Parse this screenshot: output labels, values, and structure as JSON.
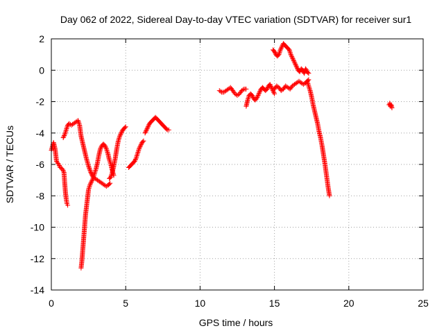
{
  "chart_data": {
    "type": "scatter",
    "title": "Day 062 of 2022, Sidereal Day-to-day VTEC variation (SDTVAR) for receiver sur1",
    "xlabel": "GPS time / hours",
    "ylabel": "SDTVAR / TECUs",
    "xlim": [
      0,
      25
    ],
    "ylim": [
      -14,
      2
    ],
    "x_ticks": [
      "0",
      "5",
      "10",
      "15",
      "20",
      "25"
    ],
    "y_ticks": [
      "2",
      "0",
      "-2",
      "-4",
      "-6",
      "-8",
      "-10",
      "-12",
      "-14"
    ],
    "grid": true,
    "legend": "none",
    "marker": "+",
    "color": "#ff0000",
    "tracks": [
      {
        "x": [
          0.0,
          0.15,
          0.25,
          0.35,
          0.5,
          0.6,
          0.75,
          0.85,
          0.9,
          0.95,
          1.0,
          1.05,
          1.1
        ],
        "y": [
          -5.1,
          -4.6,
          -5.0,
          -5.8,
          -6.0,
          -6.2,
          -6.3,
          -6.5,
          -7.2,
          -7.8,
          -8.2,
          -8.5,
          -8.6
        ]
      },
      {
        "x": [
          0.8,
          0.9,
          1.0,
          1.1,
          1.2,
          1.35,
          1.5,
          1.65,
          1.8,
          1.9,
          2.0,
          2.1,
          2.2,
          2.35,
          2.5,
          2.65,
          2.8,
          2.95,
          3.1,
          3.25,
          3.4,
          3.55,
          3.7,
          3.85,
          3.95
        ],
        "y": [
          -4.3,
          -4.1,
          -3.8,
          -3.5,
          -3.4,
          -3.5,
          -3.4,
          -3.3,
          -3.2,
          -3.5,
          -4.2,
          -4.6,
          -5.0,
          -5.6,
          -6.1,
          -6.5,
          -6.8,
          -6.9,
          -7.0,
          -7.1,
          -7.2,
          -7.3,
          -7.4,
          -7.3,
          -7.2
        ]
      },
      {
        "x": [
          2.0,
          2.05,
          2.1,
          2.15,
          2.2,
          2.25,
          2.3,
          2.35,
          2.4,
          2.45,
          2.5,
          2.6,
          2.7,
          2.8,
          2.9,
          3.0,
          3.1,
          3.2,
          3.3,
          3.4,
          3.5,
          3.6,
          3.7,
          3.8,
          3.9,
          4.0,
          4.1,
          4.2
        ],
        "y": [
          -12.6,
          -12.2,
          -11.6,
          -11.0,
          -10.4,
          -9.8,
          -9.2,
          -8.8,
          -8.4,
          -8.0,
          -7.6,
          -7.3,
          -7.1,
          -6.9,
          -6.6,
          -6.3,
          -5.9,
          -5.4,
          -5.0,
          -4.8,
          -4.7,
          -4.8,
          -5.0,
          -5.3,
          -5.7,
          -6.0,
          -6.4,
          -6.7
        ]
      },
      {
        "x": [
          3.9,
          4.0,
          4.1,
          4.2,
          4.3,
          4.4,
          4.5,
          4.6,
          4.7,
          4.8,
          4.9,
          5.0
        ],
        "y": [
          -6.9,
          -6.8,
          -6.5,
          -6.1,
          -5.6,
          -5.0,
          -4.5,
          -4.2,
          -4.0,
          -3.8,
          -3.7,
          -3.6
        ]
      },
      {
        "x": [
          5.2,
          5.3,
          5.4,
          5.5,
          5.6,
          5.7,
          5.8,
          5.9,
          6.0,
          6.1,
          6.2
        ],
        "y": [
          -6.2,
          -6.1,
          -6.0,
          -5.9,
          -5.8,
          -5.6,
          -5.3,
          -5.0,
          -4.8,
          -4.6,
          -4.5
        ]
      },
      {
        "x": [
          6.3,
          6.4,
          6.5,
          6.6,
          6.7,
          6.8,
          6.9,
          7.0,
          7.1,
          7.2,
          7.3,
          7.4,
          7.5,
          7.6,
          7.7,
          7.8,
          7.9
        ],
        "y": [
          -4.0,
          -3.8,
          -3.6,
          -3.4,
          -3.3,
          -3.2,
          -3.1,
          -3.0,
          -3.1,
          -3.2,
          -3.3,
          -3.4,
          -3.5,
          -3.6,
          -3.7,
          -3.8,
          -3.8
        ]
      },
      {
        "x": [
          11.3,
          11.45,
          11.6,
          11.75,
          11.9,
          12.05,
          12.2,
          12.35,
          12.5,
          12.65,
          12.8,
          12.95,
          13.1
        ],
        "y": [
          -1.3,
          -1.4,
          -1.4,
          -1.3,
          -1.2,
          -1.1,
          -1.3,
          -1.5,
          -1.6,
          -1.5,
          -1.3,
          -1.2,
          -1.2
        ]
      },
      {
        "x": [
          13.1,
          13.2,
          13.3,
          13.4,
          13.5,
          13.6,
          13.7,
          13.8,
          13.9,
          14.0,
          14.1,
          14.2,
          14.3,
          14.4,
          14.5,
          14.6,
          14.7,
          14.8,
          14.9,
          15.0
        ],
        "y": [
          -2.3,
          -1.9,
          -1.6,
          -1.5,
          -1.6,
          -1.8,
          -1.9,
          -1.8,
          -1.6,
          -1.4,
          -1.2,
          -1.1,
          -1.2,
          -1.3,
          -1.2,
          -1.0,
          -0.9,
          -1.1,
          -1.3,
          -1.5
        ]
      },
      {
        "x": [
          14.9,
          15.0,
          15.1,
          15.2,
          15.3,
          15.4,
          15.5,
          15.6,
          15.7,
          15.8,
          15.9,
          16.0,
          16.1,
          16.2,
          16.3,
          16.4,
          16.5,
          16.6,
          16.7,
          16.8,
          16.9,
          17.0,
          17.1,
          17.2,
          17.3
        ],
        "y": [
          1.3,
          1.2,
          1.0,
          0.9,
          1.0,
          1.3,
          1.5,
          1.7,
          1.6,
          1.5,
          1.4,
          1.3,
          1.0,
          0.8,
          0.6,
          0.4,
          0.2,
          0.0,
          -0.1,
          0.1,
          0.0,
          -0.2,
          0.1,
          -0.1,
          -0.2
        ]
      },
      {
        "x": [
          15.0,
          15.15,
          15.3,
          15.45,
          15.6,
          15.75,
          15.9,
          16.05,
          16.2,
          16.35,
          16.5,
          16.65,
          16.8,
          16.95,
          17.1,
          17.2,
          17.3
        ],
        "y": [
          -1.2,
          -1.0,
          -1.1,
          -1.3,
          -1.2,
          -1.0,
          -1.1,
          -1.2,
          -1.0,
          -0.9,
          -0.8,
          -0.7,
          -0.8,
          -0.9,
          -0.8,
          -0.7,
          -0.6
        ]
      },
      {
        "x": [
          17.2,
          17.3,
          17.4,
          17.5,
          17.6,
          17.7,
          17.8,
          17.9,
          18.0,
          18.1,
          18.2,
          18.3,
          18.4,
          18.5,
          18.6,
          18.7
        ],
        "y": [
          -0.7,
          -1.0,
          -1.3,
          -1.7,
          -2.2,
          -2.6,
          -3.0,
          -3.4,
          -3.9,
          -4.3,
          -4.8,
          -5.4,
          -6.0,
          -6.7,
          -7.4,
          -8.0
        ]
      },
      {
        "x": [
          22.7,
          22.75,
          22.8,
          22.85,
          22.9
        ],
        "y": [
          -2.2,
          -2.1,
          -2.3,
          -2.2,
          -2.4
        ]
      }
    ]
  }
}
